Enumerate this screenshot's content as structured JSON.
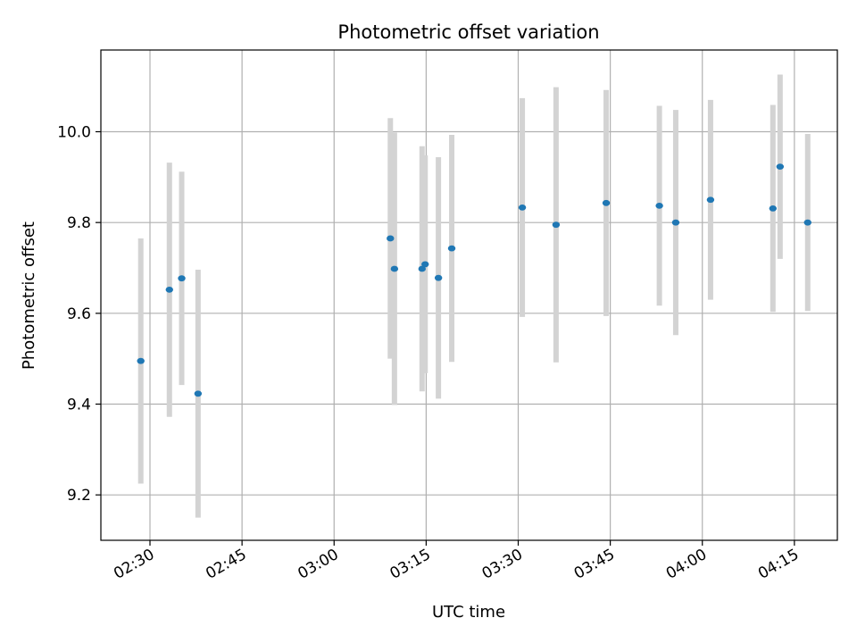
{
  "chart_data": {
    "type": "scatter",
    "title": "Photometric offset variation",
    "xlabel": "UTC time",
    "ylabel": "Photometric offset",
    "x_unit": "UTC time (HH:MM)",
    "xlim": [
      "02:22",
      "04:22"
    ],
    "ylim": [
      9.1,
      10.18
    ],
    "grid": true,
    "x_ticks": [
      "02:30",
      "02:45",
      "03:00",
      "03:15",
      "03:30",
      "03:45",
      "04:00",
      "04:15"
    ],
    "y_ticks": [
      "9.2",
      "9.4",
      "9.6",
      "9.8",
      "10.0"
    ],
    "point_color": "#1f77b4",
    "errorbar_color": "#d3d3d3",
    "points": [
      {
        "x": "02:28:30",
        "y": 9.495,
        "ylow": 9.225,
        "yhigh": 9.765
      },
      {
        "x": "02:33:10",
        "y": 9.652,
        "ylow": 9.372,
        "yhigh": 9.932
      },
      {
        "x": "02:35:10",
        "y": 9.677,
        "ylow": 9.442,
        "yhigh": 9.912
      },
      {
        "x": "02:37:50",
        "y": 9.423,
        "ylow": 9.15,
        "yhigh": 9.696
      },
      {
        "x": "03:09:10",
        "y": 9.765,
        "ylow": 9.5,
        "yhigh": 10.03
      },
      {
        "x": "03:09:50",
        "y": 9.698,
        "ylow": 9.398,
        "yhigh": 9.998
      },
      {
        "x": "03:14:20",
        "y": 9.698,
        "ylow": 9.428,
        "yhigh": 9.968
      },
      {
        "x": "03:14:50",
        "y": 9.708,
        "ylow": 9.468,
        "yhigh": 9.948
      },
      {
        "x": "03:17:00",
        "y": 9.678,
        "ylow": 9.412,
        "yhigh": 9.944
      },
      {
        "x": "03:19:10",
        "y": 9.743,
        "ylow": 9.493,
        "yhigh": 9.993
      },
      {
        "x": "03:30:40",
        "y": 9.833,
        "ylow": 9.592,
        "yhigh": 10.074
      },
      {
        "x": "03:36:10",
        "y": 9.795,
        "ylow": 9.492,
        "yhigh": 10.098
      },
      {
        "x": "03:44:20",
        "y": 9.843,
        "ylow": 9.594,
        "yhigh": 10.092
      },
      {
        "x": "03:53:00",
        "y": 9.837,
        "ylow": 9.617,
        "yhigh": 10.057
      },
      {
        "x": "03:55:40",
        "y": 9.8,
        "ylow": 9.552,
        "yhigh": 10.048
      },
      {
        "x": "04:01:20",
        "y": 9.85,
        "ylow": 9.63,
        "yhigh": 10.07
      },
      {
        "x": "04:11:30",
        "y": 9.831,
        "ylow": 9.603,
        "yhigh": 10.059
      },
      {
        "x": "04:12:40",
        "y": 9.923,
        "ylow": 9.72,
        "yhigh": 10.126
      },
      {
        "x": "04:17:10",
        "y": 9.8,
        "ylow": 9.605,
        "yhigh": 9.995
      }
    ]
  }
}
